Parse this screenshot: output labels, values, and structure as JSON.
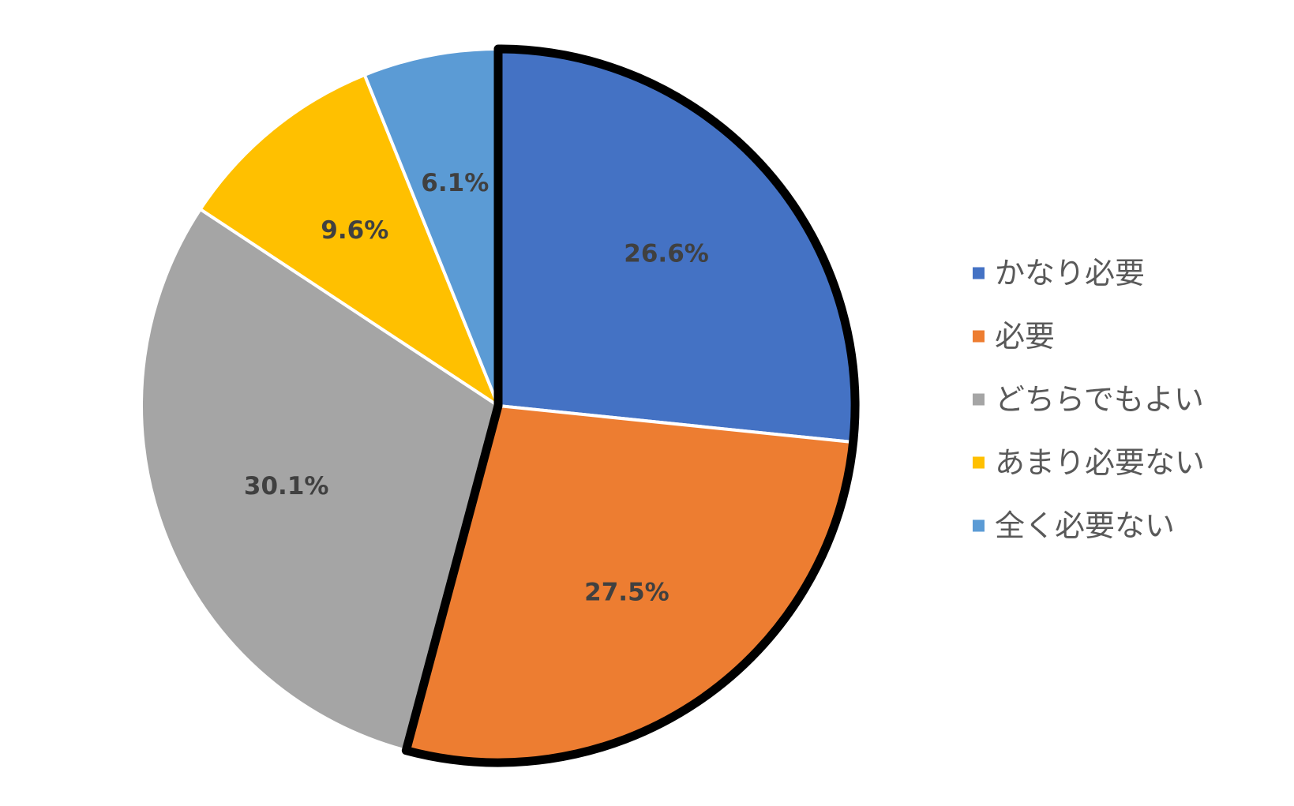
{
  "chart_data": {
    "type": "pie",
    "categories": [
      "かなり必要",
      "必要",
      "どちらでもよい",
      "あまり必要ない",
      "全く必要ない"
    ],
    "values": [
      26.6,
      27.5,
      30.1,
      9.6,
      6.1
    ],
    "data_labels": [
      "26.6%",
      "27.5%",
      "30.1%",
      "9.6%",
      "6.1%"
    ],
    "colors": [
      "#4472C4",
      "#ED7D31",
      "#A5A5A5",
      "#FFC000",
      "#5B9BD5"
    ],
    "start_angle_deg": 0,
    "direction": "clockwise",
    "highlighted": [
      "かなり必要",
      "必要"
    ],
    "highlight_outline_color": "#000000",
    "slice_separator_color": "#ffffff",
    "legend_position": "right",
    "title": "",
    "background": "#ffffff"
  }
}
